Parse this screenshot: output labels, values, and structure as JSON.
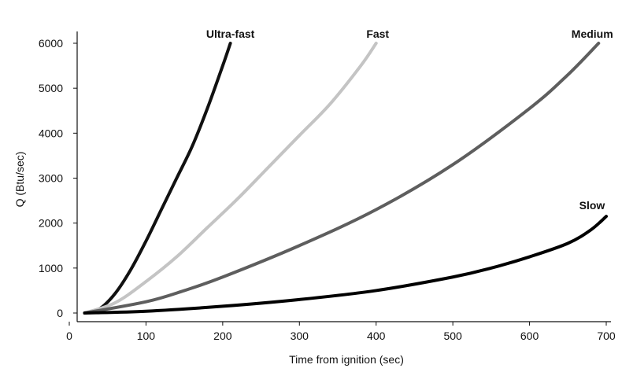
{
  "chart_data": {
    "type": "line",
    "title": "",
    "xlabel": "Time from ignition (sec)",
    "ylabel": "Q (Btu/sec)",
    "xlim": [
      0,
      700
    ],
    "ylim": [
      0,
      6000
    ],
    "xticks": [
      0,
      100,
      200,
      300,
      400,
      500,
      600,
      700
    ],
    "yticks": [
      0,
      1000,
      2000,
      3000,
      4000,
      5000,
      6000
    ],
    "grid": false,
    "legend": "none",
    "series": [
      {
        "name": "Ultra-fast",
        "color": "#111111",
        "x": [
          20,
          40,
          60,
          80,
          100,
          120,
          140,
          160,
          180,
          200,
          210
        ],
        "y": [
          0,
          100,
          440,
          960,
          1600,
          2300,
          3000,
          3700,
          4550,
          5500,
          6000
        ]
      },
      {
        "name": "Fast",
        "color": "#c4c4c4",
        "x": [
          20,
          60,
          100,
          140,
          180,
          220,
          260,
          300,
          340,
          380,
          400
        ],
        "y": [
          0,
          230,
          700,
          1250,
          1900,
          2550,
          3250,
          3950,
          4650,
          5500,
          6000
        ]
      },
      {
        "name": "Medium",
        "color": "#5e5e5e",
        "x": [
          20,
          100,
          150,
          200,
          300,
          400,
          500,
          600,
          650,
          690
        ],
        "y": [
          0,
          250,
          500,
          800,
          1500,
          2300,
          3300,
          4550,
          5300,
          6000
        ]
      },
      {
        "name": "Slow",
        "color": "#000000",
        "x": [
          20,
          100,
          200,
          300,
          400,
          500,
          550,
          600,
          650,
          680,
          700
        ],
        "y": [
          0,
          40,
          150,
          300,
          500,
          800,
          1000,
          1250,
          1550,
          1850,
          2150
        ]
      }
    ]
  }
}
